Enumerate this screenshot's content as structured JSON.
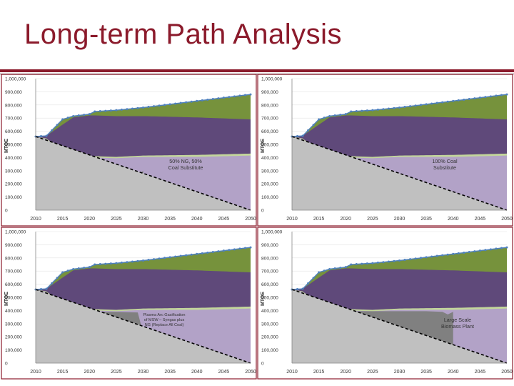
{
  "slide": {
    "title": "Long-term Path Analysis"
  },
  "colors": {
    "title": "#8b1a2b",
    "panel_border": "#8b1a2b",
    "green": "#76923c",
    "purple": "#5f497a",
    "light_green": "#c3d69b",
    "lavender": "#b2a2c7",
    "dark_gray": "#808080",
    "light_gray": "#c0c0c0",
    "line_marker": "#4f81bd",
    "dashed_line": "#000000"
  },
  "chart_data": [
    {
      "type": "area",
      "ylabel": "MTOE",
      "ylim": [
        0,
        1000000
      ],
      "xlim": [
        2010,
        2050
      ],
      "y_ticks": [
        "0",
        "100,000",
        "200,000",
        "300,000",
        "400,000",
        "500,000",
        "600,000",
        "700,000",
        "800,000",
        "900,000",
        "1,000,000"
      ],
      "x_ticks": [
        "2010",
        "2015",
        "2020",
        "2025",
        "2030",
        "2035",
        "2040",
        "2045",
        "2050"
      ],
      "annotation": "50% NG, 50%\nCoal Substitute",
      "total_demand": {
        "x": [
          2010,
          2012,
          2015,
          2017,
          2020,
          2021,
          2025,
          2030,
          2040,
          2050
        ],
        "y": [
          560000,
          565000,
          690000,
          715000,
          730000,
          750000,
          760000,
          780000,
          830000,
          880000
        ]
      },
      "layers": [
        {
          "name": "green",
          "top": [
            560000,
            565000,
            690000,
            715000,
            730000,
            750000,
            760000,
            780000,
            830000,
            880000
          ]
        },
        {
          "name": "purple",
          "top": [
            560000,
            565000,
            650000,
            705000,
            720000,
            720000,
            715000,
            715000,
            705000,
            690000
          ]
        },
        {
          "name": "light_green",
          "top": [
            560000,
            545000,
            450000,
            410000,
            410000,
            410000,
            405000,
            415000,
            420000,
            430000
          ]
        },
        {
          "name": "lavender",
          "top": [
            560000,
            540000,
            440000,
            395000,
            400000,
            400000,
            395000,
            405000,
            405000,
            415000
          ]
        }
      ],
      "gray_top": {
        "x": [
          2010,
          2011,
          2013,
          2014.5,
          2015,
          2015.5,
          2016,
          2019,
          2020,
          2022,
          2024,
          2028,
          2029,
          2030
        ],
        "y": [
          560000,
          550000,
          490000,
          430000,
          230000,
          390000,
          400000,
          400000,
          250000,
          250000,
          240000,
          240000,
          260000,
          300000
        ]
      },
      "baseline_decline": {
        "x": [
          2010,
          2050
        ],
        "y": [
          560000,
          0
        ]
      }
    },
    {
      "type": "area",
      "ylabel": "MTOE",
      "ylim": [
        0,
        1000000
      ],
      "xlim": [
        2010,
        2050
      ],
      "y_ticks": [
        "0",
        "100,000",
        "200,000",
        "300,000",
        "400,000",
        "500,000",
        "600,000",
        "700,000",
        "800,000",
        "900,000",
        "1,000,000"
      ],
      "x_ticks": [
        "2010",
        "2015",
        "2020",
        "2025",
        "2030",
        "2035",
        "2040",
        "2045",
        "2050"
      ],
      "annotation": "100% Coal\nSubstitute",
      "total_demand": {
        "x": [
          2010,
          2012,
          2015,
          2017,
          2020,
          2021,
          2025,
          2030,
          2040,
          2050
        ],
        "y": [
          560000,
          565000,
          690000,
          715000,
          730000,
          750000,
          760000,
          780000,
          830000,
          880000
        ]
      },
      "layers": [
        {
          "name": "green",
          "top": [
            560000,
            565000,
            690000,
            715000,
            730000,
            750000,
            760000,
            780000,
            830000,
            880000
          ]
        },
        {
          "name": "purple",
          "top": [
            560000,
            565000,
            650000,
            705000,
            720000,
            720000,
            715000,
            715000,
            705000,
            690000
          ]
        },
        {
          "name": "light_green",
          "top": [
            560000,
            545000,
            450000,
            410000,
            410000,
            410000,
            405000,
            415000,
            420000,
            430000
          ]
        },
        {
          "name": "lavender",
          "top": [
            560000,
            540000,
            440000,
            395000,
            400000,
            400000,
            395000,
            405000,
            405000,
            415000
          ]
        }
      ],
      "gray_top": {
        "x": [
          2010,
          2011,
          2013,
          2014.5,
          2015,
          2015.5,
          2016,
          2019,
          2020,
          2022,
          2024,
          2028,
          2030
        ],
        "y": [
          560000,
          550000,
          490000,
          430000,
          230000,
          390000,
          400000,
          400000,
          190000,
          190000,
          180000,
          190000,
          200000
        ]
      },
      "baseline_decline": {
        "x": [
          2010,
          2050
        ],
        "y": [
          560000,
          0
        ]
      }
    },
    {
      "type": "area",
      "ylabel": "MTOE",
      "ylim": [
        0,
        1000000
      ],
      "xlim": [
        2010,
        2050
      ],
      "y_ticks": [
        "0",
        "100,000",
        "200,000",
        "300,000",
        "400,000",
        "500,000",
        "600,000",
        "700,000",
        "800,000",
        "900,000",
        "1,000,000"
      ],
      "x_ticks": [
        "2010",
        "2015",
        "2020",
        "2025",
        "2030",
        "2035",
        "2040",
        "2045",
        "2050"
      ],
      "annotation": "Plasma Arc Gasification\nof MSW – Syngas plus\nNG (Replace All Coal)",
      "total_demand": {
        "x": [
          2010,
          2012,
          2015,
          2017,
          2020,
          2021,
          2025,
          2030,
          2040,
          2050
        ],
        "y": [
          560000,
          565000,
          690000,
          715000,
          730000,
          750000,
          760000,
          780000,
          830000,
          880000
        ]
      },
      "layers": [
        {
          "name": "green",
          "top": [
            560000,
            565000,
            690000,
            715000,
            730000,
            750000,
            760000,
            780000,
            830000,
            880000
          ]
        },
        {
          "name": "purple",
          "top": [
            560000,
            565000,
            650000,
            705000,
            720000,
            720000,
            715000,
            715000,
            705000,
            690000
          ]
        },
        {
          "name": "light_green",
          "top": [
            560000,
            545000,
            450000,
            410000,
            410000,
            410000,
            405000,
            415000,
            420000,
            430000
          ]
        },
        {
          "name": "lavender",
          "top": [
            560000,
            540000,
            440000,
            395000,
            400000,
            400000,
            395000,
            405000,
            405000,
            415000
          ]
        }
      ],
      "gray_top": {
        "x": [
          2010,
          2011,
          2013,
          2014.5,
          2015,
          2015.5,
          2016,
          2019,
          2020,
          2022,
          2025,
          2029,
          2030,
          2031,
          2032
        ],
        "y": [
          560000,
          550000,
          490000,
          430000,
          240000,
          390000,
          400000,
          400000,
          395000,
          390000,
          390000,
          385000,
          230000,
          240000,
          255000
        ]
      },
      "baseline_decline": {
        "x": [
          2010,
          2050
        ],
        "y": [
          560000,
          0
        ]
      }
    },
    {
      "type": "area",
      "ylabel": "MTOE",
      "ylim": [
        0,
        1000000
      ],
      "xlim": [
        2010,
        2050
      ],
      "y_ticks": [
        "0",
        "100,000",
        "200,000",
        "300,000",
        "400,000",
        "500,000",
        "600,000",
        "700,000",
        "800,000",
        "900,000",
        "1,000,000"
      ],
      "x_ticks": [
        "2010",
        "2015",
        "2020",
        "2025",
        "2030",
        "2035",
        "2040",
        "2045",
        "2050"
      ],
      "annotation": "Large Scale\nBiomass Plant",
      "total_demand": {
        "x": [
          2010,
          2012,
          2015,
          2017,
          2020,
          2021,
          2025,
          2030,
          2040,
          2050
        ],
        "y": [
          560000,
          565000,
          690000,
          715000,
          730000,
          750000,
          760000,
          780000,
          830000,
          880000
        ]
      },
      "layers": [
        {
          "name": "green",
          "top": [
            560000,
            565000,
            690000,
            715000,
            730000,
            750000,
            760000,
            780000,
            830000,
            880000
          ]
        },
        {
          "name": "purple",
          "top": [
            560000,
            565000,
            650000,
            705000,
            720000,
            720000,
            715000,
            715000,
            705000,
            690000
          ]
        },
        {
          "name": "light_green",
          "top": [
            560000,
            545000,
            450000,
            410000,
            410000,
            410000,
            405000,
            415000,
            420000,
            430000
          ]
        },
        {
          "name": "lavender",
          "top": [
            560000,
            540000,
            440000,
            395000,
            400000,
            400000,
            395000,
            405000,
            405000,
            415000
          ]
        }
      ],
      "gray_top": {
        "x": [
          2010,
          2011,
          2013,
          2014.5,
          2015,
          2015.5,
          2016,
          2019,
          2020,
          2025,
          2030,
          2035,
          2038,
          2039,
          2040
        ],
        "y": [
          560000,
          550000,
          490000,
          430000,
          240000,
          390000,
          400000,
          400000,
          395000,
          395000,
          395000,
          395000,
          390000,
          370000,
          390000
        ]
      },
      "baseline_decline": {
        "x": [
          2010,
          2050
        ],
        "y": [
          560000,
          0
        ]
      }
    }
  ]
}
